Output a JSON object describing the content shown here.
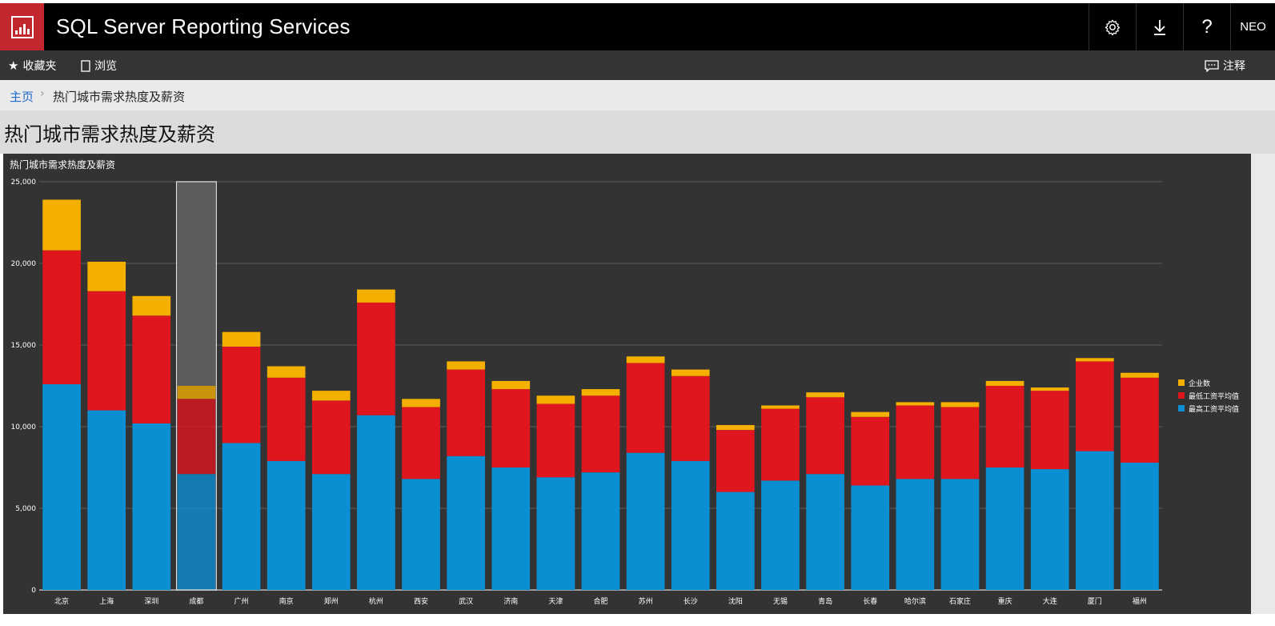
{
  "header": {
    "app_title": "SQL Server Reporting Services",
    "user": "NEO",
    "icons": [
      "gear-icon",
      "download-icon",
      "help-icon"
    ],
    "help_glyph": "?"
  },
  "nav": {
    "favorites": "收藏夹",
    "browse": "浏览",
    "comments": "注释"
  },
  "breadcrumb": {
    "home": "主页",
    "current": "热门城市需求热度及薪资"
  },
  "page_title": "热门城市需求热度及薪资",
  "colors": {
    "blue": "#0a8fd2",
    "red": "#e0161f",
    "gold": "#f3b000",
    "brand": "#c1272d"
  },
  "chart_data": {
    "type": "bar",
    "stacked": true,
    "title": "热门城市需求热度及薪资",
    "ylim": [
      0,
      25000
    ],
    "yticks": [
      0,
      5000,
      10000,
      15000,
      20000,
      25000
    ],
    "ytick_labels": [
      "0",
      "5,000",
      "10,000",
      "15,000",
      "20,000",
      "25,000"
    ],
    "grid": true,
    "legend_position": "right",
    "highlighted_category": "成都",
    "categories": [
      "北京",
      "上海",
      "深圳",
      "成都",
      "广州",
      "南京",
      "郑州",
      "杭州",
      "西安",
      "武汉",
      "济南",
      "天津",
      "合肥",
      "苏州",
      "长沙",
      "沈阳",
      "无锡",
      "青岛",
      "长春",
      "哈尔滨",
      "石家庄",
      "重庆",
      "大连",
      "厦门",
      "福州"
    ],
    "series": [
      {
        "name": "最高工资平均值",
        "color": "#0a8fd2",
        "values": [
          12600,
          11000,
          10200,
          7100,
          9000,
          7900,
          7100,
          10700,
          6800,
          8200,
          7500,
          6900,
          7200,
          8400,
          7900,
          6000,
          6700,
          7100,
          6400,
          6800,
          6800,
          7500,
          7400,
          8500,
          7800
        ]
      },
      {
        "name": "最低工资平均值",
        "color": "#e0161f",
        "values": [
          8200,
          7300,
          6600,
          4600,
          5900,
          5100,
          4500,
          6900,
          4400,
          5300,
          4800,
          4500,
          4700,
          5500,
          5200,
          3800,
          4400,
          4700,
          4200,
          4500,
          4400,
          5000,
          4800,
          5500,
          5200
        ]
      },
      {
        "name": "企业数",
        "color": "#f3b000",
        "values": [
          3100,
          1800,
          1200,
          800,
          900,
          700,
          600,
          800,
          500,
          500,
          500,
          500,
          400,
          400,
          400,
          300,
          200,
          300,
          300,
          200,
          300,
          300,
          200,
          200,
          300
        ]
      }
    ],
    "legend_order": [
      "企业数",
      "最低工资平均值",
      "最高工资平均值"
    ]
  }
}
